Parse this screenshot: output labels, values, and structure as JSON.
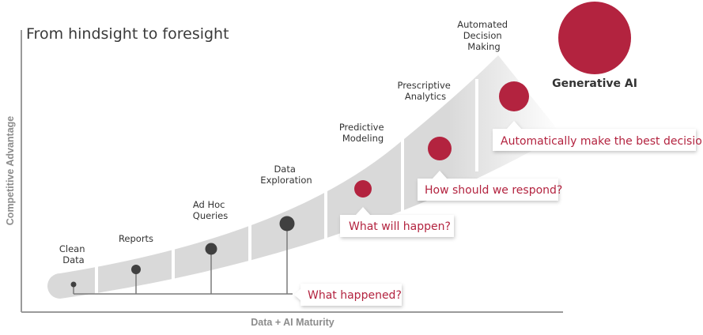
{
  "title": "From hindsight to foresight",
  "axes": {
    "x_label": "Data + AI Maturity",
    "y_label": "Competitive Advantage"
  },
  "stages": [
    {
      "lines": [
        "Clean",
        "Data"
      ]
    },
    {
      "lines": [
        "Reports"
      ]
    },
    {
      "lines": [
        "Ad Hoc",
        "Queries"
      ]
    },
    {
      "lines": [
        "Data",
        "Exploration"
      ]
    },
    {
      "lines": [
        "Predictive",
        "Modeling"
      ]
    },
    {
      "lines": [
        "Prescriptive",
        "Analytics"
      ]
    },
    {
      "lines": [
        "Automated",
        "Decision",
        "Making"
      ]
    }
  ],
  "callouts": [
    "What happened?",
    "What will happen?",
    "How should we respond?",
    "Automatically make the best decision"
  ],
  "highlight": {
    "label": "Generative AI",
    "color": "#b3233f"
  },
  "colors": {
    "band": "#d9d9d9",
    "past_marker": "#404040",
    "future_marker": "#b3233f",
    "callout_text": "#b3233f"
  }
}
